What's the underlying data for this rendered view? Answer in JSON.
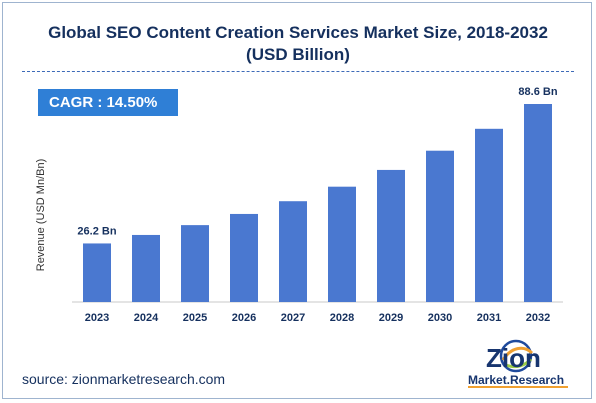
{
  "title_line1": "Global SEO Content Creation Services Market Size, 2018-2032",
  "title_line2": "(USD Billion)",
  "cagr_label": "CAGR : 14.50%",
  "source_text": "source: zionmarketresearch.com",
  "logo": {
    "brand": "Zion",
    "tagline": "Market.Research"
  },
  "colors": {
    "bar": "#4a78d0",
    "title": "#15305e",
    "cagr_bg": "#2f7fd6"
  },
  "chart_data": {
    "type": "bar",
    "categories": [
      "2023",
      "2024",
      "2025",
      "2026",
      "2027",
      "2028",
      "2029",
      "2030",
      "2031",
      "2032"
    ],
    "values": [
      26.2,
      30.0,
      34.4,
      39.4,
      45.1,
      51.6,
      59.1,
      67.7,
      77.5,
      88.6
    ],
    "data_labels": {
      "2023": "26.2 Bn",
      "2032": "88.6 Bn"
    },
    "ylabel": "Revenue (USD Mn/Bn)",
    "xlabel": "",
    "ylim": [
      0,
      95
    ],
    "grid": false,
    "legend": "none"
  }
}
